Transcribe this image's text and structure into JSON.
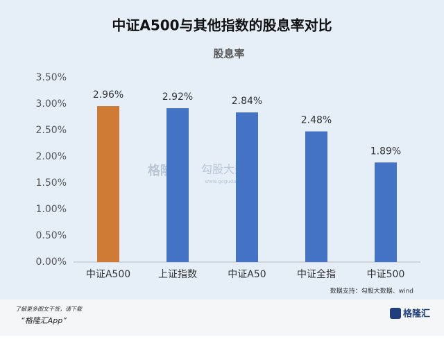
{
  "chart_data": {
    "type": "bar",
    "title": "中证A500与其他指数的股息率对比",
    "subtitle": "股息率",
    "categories": [
      "中证A500",
      "上证指数",
      "中证A50",
      "中证全指",
      "中证500"
    ],
    "values": [
      2.96,
      2.92,
      2.84,
      2.48,
      1.89
    ],
    "value_labels": [
      "2.96%",
      "2.92%",
      "2.84%",
      "2.48%",
      "1.89%"
    ],
    "colors": [
      "#cf7a35",
      "#4472c4",
      "#4472c4",
      "#4472c4",
      "#4472c4"
    ],
    "ylim": [
      0,
      3.5
    ],
    "yticks": [
      {
        "value": 0,
        "label": "0.00%"
      },
      {
        "value": 0.5,
        "label": "0.50%"
      },
      {
        "value": 1,
        "label": "1.00%"
      },
      {
        "value": 1.5,
        "label": "1.50%"
      },
      {
        "value": 2,
        "label": "2.00%"
      },
      {
        "value": 2.5,
        "label": "2.50%"
      },
      {
        "value": 3,
        "label": "3.00%"
      },
      {
        "value": 3.5,
        "label": "3.50%"
      }
    ],
    "grid": false,
    "source": "数据支持：勾股大数据、wind",
    "watermark": [
      "格隆汇",
      "勾股大数据",
      "www.gogudata.com"
    ]
  },
  "footer": {
    "line1": "了解更多图文干货，请下载",
    "line2": "“格隆汇App”",
    "logo": "格隆汇"
  }
}
